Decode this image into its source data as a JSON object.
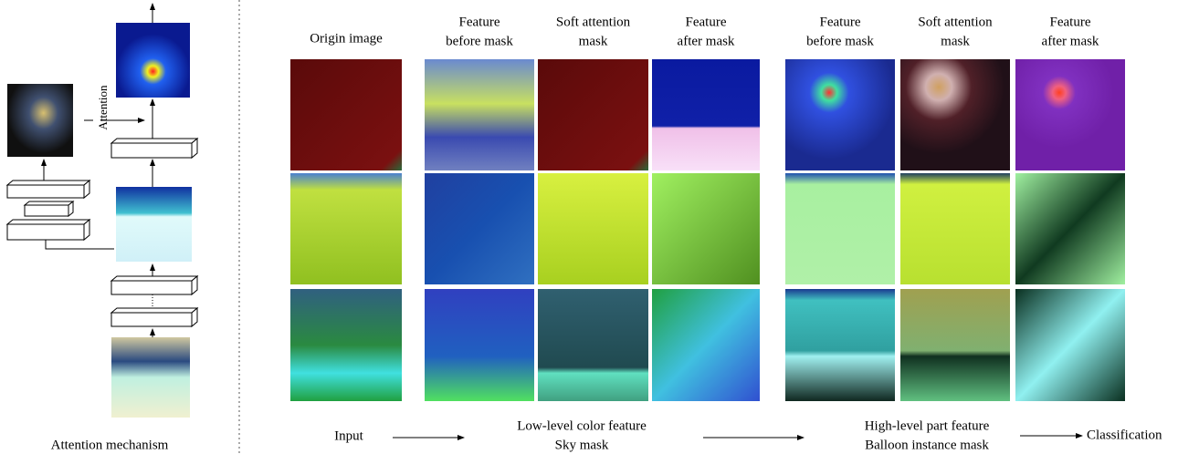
{
  "left_panel": {
    "attention_label": "Attention",
    "caption": "Attention mechanism"
  },
  "columns": [
    {
      "lines": [
        "Origin image"
      ]
    },
    {
      "lines": [
        "Feature",
        "before mask"
      ]
    },
    {
      "lines": [
        "Soft attention",
        "mask"
      ]
    },
    {
      "lines": [
        "Feature",
        "after mask"
      ]
    },
    {
      "lines": [
        "Feature",
        "before mask"
      ]
    },
    {
      "lines": [
        "Soft attention",
        "mask"
      ]
    },
    {
      "lines": [
        "Feature",
        "after mask"
      ]
    }
  ],
  "flow": {
    "input": "Input",
    "low_level": [
      "Low-level color feature",
      "Sky mask"
    ],
    "high_level": [
      "High-level part feature",
      "Balloon instance mask"
    ],
    "output": "Classification"
  }
}
